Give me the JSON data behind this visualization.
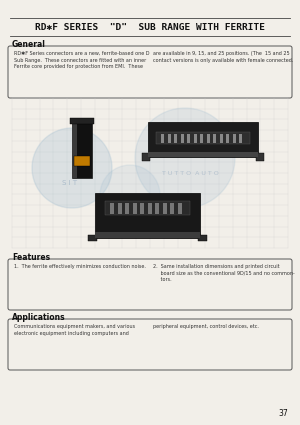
{
  "bg_color": "#f2efe9",
  "title": "RD✱F SERIES  \"D\"  SUB RANGE WITH FERRITE",
  "section_general": "General",
  "general_text_col1": "RD✱F Series connectors are a new, ferrite-based one D\nSub Range.  These connectors are fitted with an inner\nFerrite core provided for protection from EMI.  These",
  "general_text_col2": "are available in 9, 15, and 25 positions. (The  15 and 25\ncontact versions is only available with female connected.",
  "section_features": "Features",
  "features_text_col1": "1.  The ferrite effectively minimizes conduction noise.",
  "features_text_col2": "2.  Same installation dimensions and printed circuit\n     board size as the conventional 9D/15 and no common-\n     tors.",
  "section_applications": "Applications",
  "applications_text_col1": "Communications equipment makers, and various\nelectronic equipment including computers and",
  "applications_text_col2": "peripheral equipment, control devices, etc.",
  "page_number": "37",
  "line_color": "#444444",
  "box_edge_color": "#555555",
  "text_color": "#111111",
  "light_text_color": "#333333",
  "grid_color": "#cccccc",
  "watermark_color": "#a0bcd0"
}
